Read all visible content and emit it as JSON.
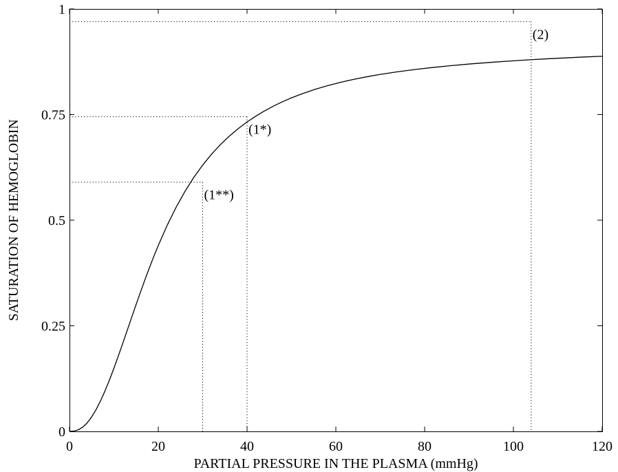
{
  "chart_data": {
    "type": "line",
    "xlabel": "PARTIAL PRESSURE IN THE PLASMA (mmHg)",
    "ylabel": "SATURATION OF HEMOGLOBIN",
    "xlim": [
      0,
      120
    ],
    "ylim": [
      0,
      1
    ],
    "xticks": [
      0,
      20,
      40,
      60,
      80,
      100,
      120
    ],
    "xtick_labels": [
      "0",
      "20",
      "40",
      "60",
      "80",
      "100",
      "120"
    ],
    "yticks": [
      0,
      0.25,
      0.5,
      0.75,
      1
    ],
    "ytick_labels": [
      "0",
      "0.25",
      "0.5",
      "0.75",
      "1"
    ],
    "grid": false,
    "series": [
      {
        "color": "#000000",
        "x": [
          0,
          1,
          2,
          3,
          4,
          5,
          6,
          7,
          8,
          9,
          10,
          11,
          12,
          13,
          14,
          15,
          16,
          17,
          18,
          19,
          20,
          22,
          24,
          26,
          28,
          30,
          32,
          34,
          36,
          38,
          40,
          42,
          44,
          46,
          48,
          50,
          52,
          55,
          58,
          61,
          64,
          67,
          70,
          74,
          78,
          82,
          86,
          90,
          95,
          100,
          104,
          108,
          112,
          116,
          120
        ],
        "y": [
          0,
          0.0007,
          0.0039,
          0.0103,
          0.0205,
          0.0344,
          0.0518,
          0.0725,
          0.096,
          0.1218,
          0.1495,
          0.1786,
          0.2086,
          0.2391,
          0.2698,
          0.3002,
          0.3301,
          0.3592,
          0.3874,
          0.4144,
          0.4401,
          0.4877,
          0.5302,
          0.5679,
          0.6012,
          0.6304,
          0.6562,
          0.6789,
          0.6989,
          0.7167,
          0.7325,
          0.7465,
          0.7591,
          0.7703,
          0.7804,
          0.7895,
          0.7977,
          0.8087,
          0.8181,
          0.8262,
          0.8333,
          0.8395,
          0.845,
          0.8514,
          0.8569,
          0.8617,
          0.8659,
          0.8696,
          0.8737,
          0.8773,
          0.8799,
          0.8822,
          0.8843,
          0.8863,
          0.888
        ]
      }
    ],
    "reference_lines": [
      {
        "label": "(1**)",
        "x": 30,
        "y": 0.59
      },
      {
        "label": "(1*)",
        "x": 40,
        "y": 0.745
      },
      {
        "label": "(2)",
        "x": 104,
        "y": 0.97
      }
    ]
  }
}
